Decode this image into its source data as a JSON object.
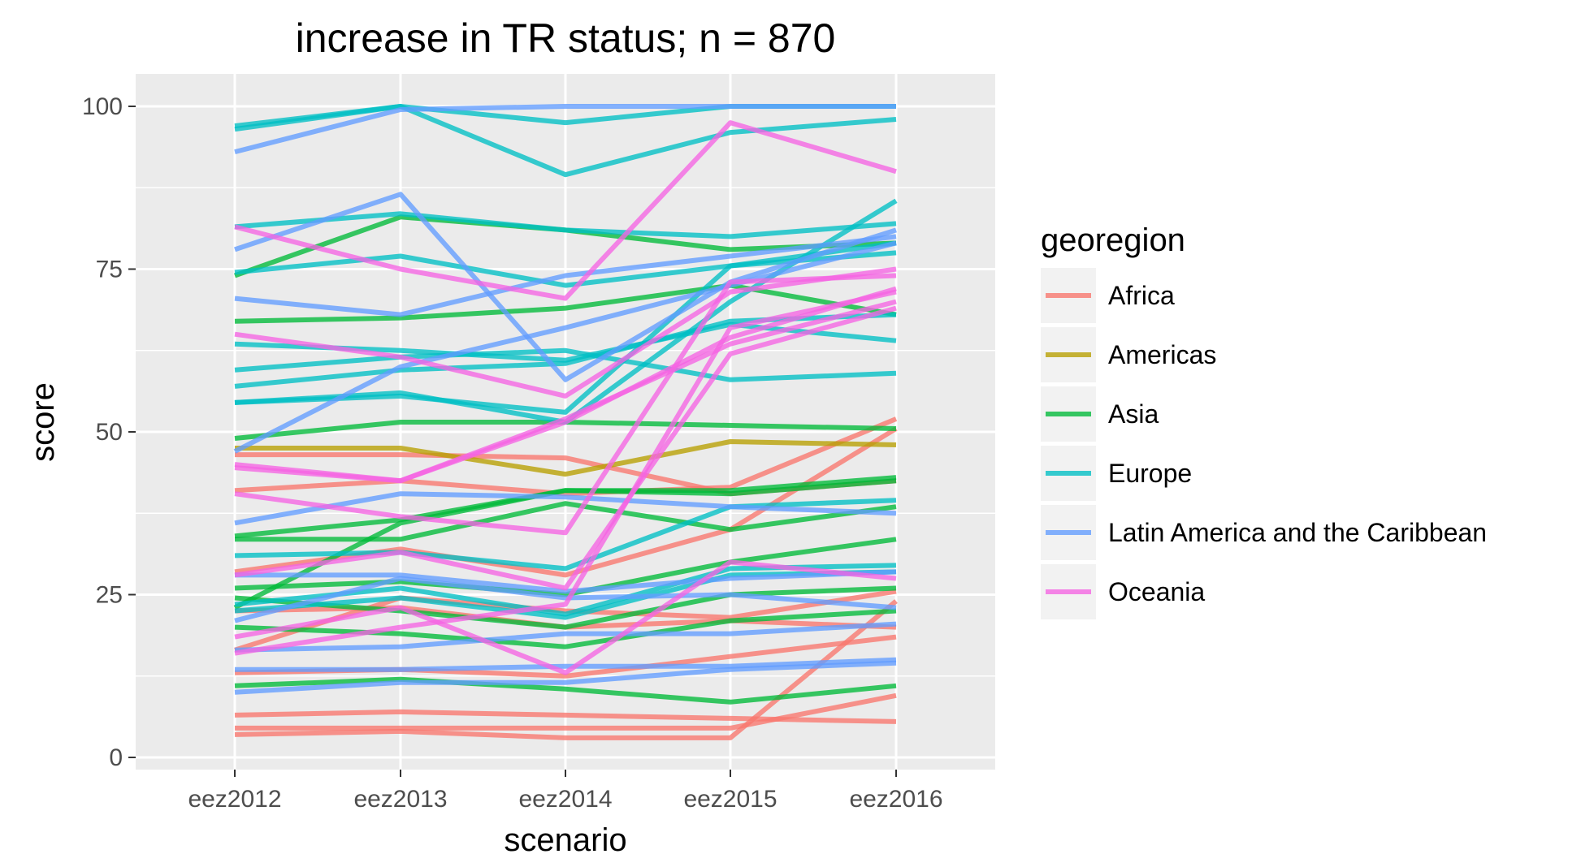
{
  "chart_data": {
    "type": "line",
    "title": "increase in TR status; n = 870",
    "xlabel": "scenario",
    "ylabel": "score",
    "categories": [
      "eez2012",
      "eez2013",
      "eez2014",
      "eez2015",
      "eez2016"
    ],
    "ylim": [
      0,
      100
    ],
    "yticks": [
      0,
      25,
      50,
      75,
      100
    ],
    "grid": true,
    "legend": {
      "title": "georegion",
      "position": "right",
      "entries": [
        {
          "label": "Africa",
          "color": "#F8766D"
        },
        {
          "label": "Americas",
          "color": "#B79F00"
        },
        {
          "label": "Asia",
          "color": "#00BA38"
        },
        {
          "label": "Europe",
          "color": "#00BFC4"
        },
        {
          "label": "Latin America and the Caribbean",
          "color": "#619CFF"
        },
        {
          "label": "Oceania",
          "color": "#F564E3"
        }
      ]
    },
    "series": [
      {
        "group": "Africa",
        "values": [
          41,
          42.5,
          40.5,
          41.5,
          52
        ]
      },
      {
        "group": "Africa",
        "values": [
          46.5,
          46.5,
          46,
          40.5,
          42.5
        ]
      },
      {
        "group": "Africa",
        "values": [
          28.5,
          32,
          28,
          35,
          50.5
        ]
      },
      {
        "group": "Africa",
        "values": [
          16.5,
          24.5,
          22.5,
          21.5,
          25.5
        ]
      },
      {
        "group": "Africa",
        "values": [
          13,
          13.5,
          12.5,
          15.5,
          18.5
        ]
      },
      {
        "group": "Africa",
        "values": [
          6.5,
          7,
          6.5,
          6,
          5.5
        ]
      },
      {
        "group": "Africa",
        "values": [
          4.5,
          4.5,
          4.5,
          4.5,
          9.5
        ]
      },
      {
        "group": "Africa",
        "values": [
          3.5,
          4,
          3,
          3,
          24
        ]
      },
      {
        "group": "Africa",
        "values": [
          22.5,
          23,
          20,
          21,
          20
        ]
      },
      {
        "group": "Americas",
        "values": [
          47.5,
          47.5,
          43.5,
          48.5,
          48
        ]
      },
      {
        "group": "Asia",
        "values": [
          74,
          83,
          81,
          78,
          79
        ]
      },
      {
        "group": "Asia",
        "values": [
          67,
          67.5,
          69,
          72.5,
          68
        ]
      },
      {
        "group": "Asia",
        "values": [
          49,
          51.5,
          51.5,
          51,
          50.5
        ]
      },
      {
        "group": "Asia",
        "values": [
          34,
          36.5,
          41,
          41,
          43
        ]
      },
      {
        "group": "Asia",
        "values": [
          33.5,
          33.5,
          39,
          35,
          38.5
        ]
      },
      {
        "group": "Asia",
        "values": [
          23,
          36,
          41,
          40.5,
          42.5
        ]
      },
      {
        "group": "Asia",
        "values": [
          26,
          27,
          25,
          30,
          33.5
        ]
      },
      {
        "group": "Asia",
        "values": [
          24.5,
          22.5,
          20,
          25,
          26
        ]
      },
      {
        "group": "Asia",
        "values": [
          20,
          19,
          17,
          21,
          22.5
        ]
      },
      {
        "group": "Asia",
        "values": [
          11,
          12,
          10.5,
          8.5,
          11
        ]
      },
      {
        "group": "Europe",
        "values": [
          97,
          100,
          89.5,
          96,
          98
        ]
      },
      {
        "group": "Europe",
        "values": [
          96.5,
          100,
          97.5,
          100,
          100
        ]
      },
      {
        "group": "Europe",
        "values": [
          81.5,
          83.5,
          81,
          80,
          82
        ]
      },
      {
        "group": "Europe",
        "values": [
          74.5,
          77,
          72.5,
          75.5,
          77.5
        ]
      },
      {
        "group": "Europe",
        "values": [
          63.5,
          62.5,
          61,
          66.5,
          64
        ]
      },
      {
        "group": "Europe",
        "values": [
          59.5,
          61.5,
          62.5,
          58,
          59
        ]
      },
      {
        "group": "Europe",
        "values": [
          57,
          59.5,
          60.5,
          67,
          68
        ]
      },
      {
        "group": "Europe",
        "values": [
          54.5,
          55.5,
          53,
          75.5,
          79
        ]
      },
      {
        "group": "Europe",
        "values": [
          31,
          31.5,
          29,
          38.5,
          39.5
        ]
      },
      {
        "group": "Europe",
        "values": [
          23.5,
          26,
          22,
          29,
          29.5
        ]
      },
      {
        "group": "Europe",
        "values": [
          22.5,
          24.5,
          21.5,
          28,
          28.5
        ]
      },
      {
        "group": "Europe",
        "values": [
          54.5,
          56,
          51.5,
          70,
          85.5
        ]
      },
      {
        "group": "Latin America and the Caribbean",
        "values": [
          93,
          99.5,
          100,
          100,
          100
        ]
      },
      {
        "group": "Latin America and the Caribbean",
        "values": [
          78,
          86.5,
          58,
          73,
          81
        ]
      },
      {
        "group": "Latin America and the Caribbean",
        "values": [
          70.5,
          68,
          74,
          77,
          80
        ]
      },
      {
        "group": "Latin America and the Caribbean",
        "values": [
          47,
          60,
          66,
          72.5,
          79
        ]
      },
      {
        "group": "Latin America and the Caribbean",
        "values": [
          36,
          40.5,
          40,
          38.5,
          37.5
        ]
      },
      {
        "group": "Latin America and the Caribbean",
        "values": [
          28,
          28,
          25.5,
          27.5,
          28.5
        ]
      },
      {
        "group": "Latin America and the Caribbean",
        "values": [
          21,
          27.5,
          24.5,
          25,
          23
        ]
      },
      {
        "group": "Latin America and the Caribbean",
        "values": [
          16.5,
          17,
          19,
          19,
          20.5
        ]
      },
      {
        "group": "Latin America and the Caribbean",
        "values": [
          13.5,
          13.5,
          14,
          14,
          15
        ]
      },
      {
        "group": "Latin America and the Caribbean",
        "values": [
          10,
          11.5,
          11.5,
          13.5,
          14.5
        ]
      },
      {
        "group": "Oceania",
        "values": [
          81.5,
          75,
          70.5,
          97.5,
          90
        ]
      },
      {
        "group": "Oceania",
        "values": [
          65,
          61.5,
          55.5,
          71.5,
          75
        ]
      },
      {
        "group": "Oceania",
        "values": [
          45,
          42.5,
          51.5,
          64.5,
          72
        ]
      },
      {
        "group": "Oceania",
        "values": [
          44.5,
          42.5,
          52,
          63.5,
          70
        ]
      },
      {
        "group": "Oceania",
        "values": [
          40.5,
          37,
          34.5,
          73,
          74
        ]
      },
      {
        "group": "Oceania",
        "values": [
          28,
          31.5,
          26,
          62,
          69
        ]
      },
      {
        "group": "Oceania",
        "values": [
          18.5,
          23,
          13,
          30,
          27.5
        ]
      },
      {
        "group": "Oceania",
        "values": [
          16,
          20,
          23.5,
          66,
          71.5
        ]
      }
    ]
  }
}
